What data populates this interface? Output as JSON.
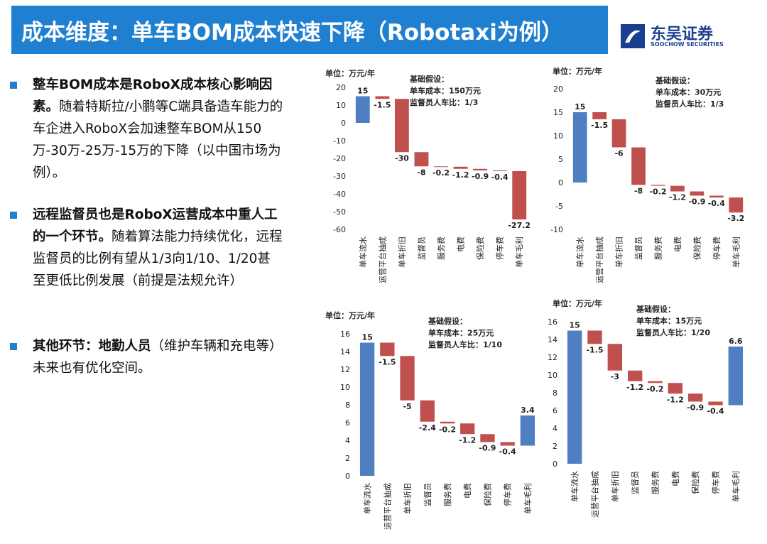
{
  "header": {
    "title": "成本维度：单车BOM成本快速下降（Robotaxi为例）",
    "logo_cn": "东吴证券",
    "logo_en": "SOOCHOW SECURITIES"
  },
  "bullets": [
    {
      "bold": "整车BOM成本是RoboX成本核心影响因素。",
      "text": "随着特斯拉/小鹏等C端具备造车能力的车企进入RoboX会加速整车BOM从150万-30万-25万-15万的下降（以中国市场为例）。"
    },
    {
      "bold": "远程监督员也是RoboX运营成本中重人工的一个环节。",
      "text": "随着算法能力持续优化，远程监督员的比例有望从1/3向1/10、1/20甚至更低比例发展（前提是法规允许）"
    },
    {
      "bold": "其他环节：地勤人员",
      "text": "（维护车辆和充电等）未来也有优化空间。"
    }
  ],
  "chart_data": [
    {
      "type": "waterfall",
      "unit": "单位：万元/年",
      "annotations": [
        "基础假设：",
        "单车成本：150万元",
        "监督员人车比：1/3"
      ],
      "categories": [
        "单车流水",
        "运营平台抽成",
        "单车折旧",
        "监督员",
        "服务费",
        "电费",
        "保险费",
        "停车费",
        "单车毛利"
      ],
      "values": [
        15,
        -1.5,
        -30,
        -8,
        -0.2,
        -1.2,
        -0.9,
        -0.4,
        -27.2
      ],
      "ylim": [
        -60,
        20
      ],
      "yticks": [
        20,
        10,
        0,
        -10,
        -20,
        -30,
        -40,
        -50,
        -60
      ],
      "colors": {
        "positive": "#4f7fc0",
        "negative": "#c0504d"
      }
    },
    {
      "type": "waterfall",
      "unit": "单位：万元/年",
      "annotations": [
        "基础假设：",
        "单车成本：30万元",
        "监督员人车比：1/3"
      ],
      "categories": [
        "单车流水",
        "运营平台抽成",
        "单车折旧",
        "监督员",
        "服务费",
        "电费",
        "保险费",
        "停车费",
        "单车毛利"
      ],
      "values": [
        15,
        -1.5,
        -6,
        -8,
        -0.2,
        -1.2,
        -0.9,
        -0.4,
        -3.2
      ],
      "ylim": [
        -10,
        20
      ],
      "yticks": [
        20,
        15,
        10,
        5,
        0,
        -5,
        -10
      ],
      "colors": {
        "positive": "#4f7fc0",
        "negative": "#c0504d"
      }
    },
    {
      "type": "waterfall",
      "unit": "单位：万元/年",
      "annotations": [
        "基础假设：",
        "单车成本：25万元",
        "监督员人车比：1/10"
      ],
      "categories": [
        "单车流水",
        "运营平台抽成",
        "单车折旧",
        "监督员",
        "服务费",
        "电费",
        "保险费",
        "停车费",
        "单车毛利"
      ],
      "values": [
        15,
        -1.5,
        -5,
        -2.4,
        -0.2,
        -1.2,
        -0.9,
        -0.4,
        3.4
      ],
      "ylim": [
        0,
        16
      ],
      "yticks": [
        16,
        14,
        12,
        10,
        8,
        6,
        4,
        2,
        0
      ],
      "colors": {
        "positive": "#4f7fc0",
        "negative": "#c0504d"
      }
    },
    {
      "type": "waterfall",
      "unit": "单位：万元/年",
      "annotations": [
        "基础假设：",
        "单车成本：15万元",
        "监督员人车比：1/20"
      ],
      "categories": [
        "单车流水",
        "运营平台抽成",
        "单车折旧",
        "监督员",
        "服务费",
        "电费",
        "保险费",
        "停车费",
        "单车毛利"
      ],
      "values": [
        15,
        -1.5,
        -3,
        -1.2,
        -0.2,
        -1.2,
        -0.9,
        -0.4,
        6.6
      ],
      "ylim": [
        0,
        16
      ],
      "yticks": [
        16,
        14,
        12,
        10,
        8,
        6,
        4,
        2,
        0
      ],
      "colors": {
        "positive": "#4f7fc0",
        "negative": "#c0504d"
      }
    }
  ]
}
